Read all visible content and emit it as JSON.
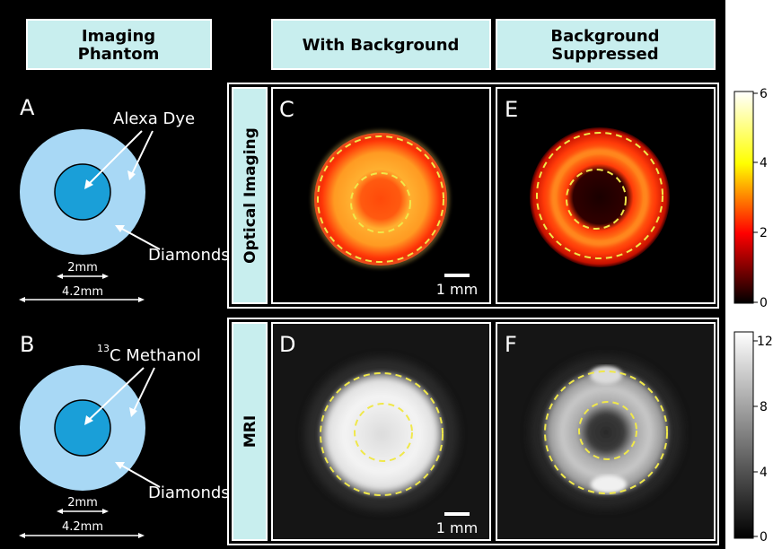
{
  "headers": {
    "phantom_line1": "Imaging",
    "phantom_line2": "Phantom",
    "with_background": "With Background",
    "suppressed_line1": "Background",
    "suppressed_line2": "Suppressed"
  },
  "row_labels": {
    "optical": "Optical Imaging",
    "mri": "MRI"
  },
  "panels": {
    "a": "A",
    "b": "B",
    "c": "C",
    "d": "D",
    "e": "E",
    "f": "F"
  },
  "phantom_a": {
    "label_outer": "Alexa Dye",
    "label_diamonds": "Diamonds",
    "inner_dim": "2mm",
    "outer_dim": "4.2mm"
  },
  "phantom_b": {
    "label_superscript": "13",
    "label_text": "C Methanol",
    "label_diamonds": "Diamonds",
    "inner_dim": "2mm",
    "outer_dim": "4.2mm"
  },
  "scale_bar": "1 mm",
  "colorbar_optical": {
    "ticks": [
      "6",
      "4",
      "2",
      "0"
    ]
  },
  "colorbar_mri": {
    "ticks": [
      "12",
      "8",
      "4",
      "0"
    ]
  },
  "colors": {
    "header_fill": "#c8eeee",
    "phantom_outer": "#a8d8f5",
    "phantom_inner": "#1a9fd8",
    "dashed_circle": "#f0e84a",
    "panel_border": "#ffffff"
  }
}
